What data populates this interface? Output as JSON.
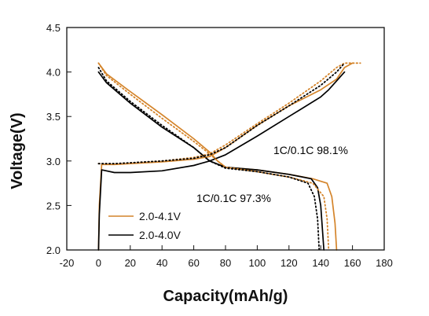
{
  "chart_data": {
    "type": "line",
    "xlabel": "Capacity(mAh/g)",
    "ylabel": "Voltage(V)",
    "xlim": [
      -20,
      180
    ],
    "ylim": [
      2.0,
      4.5
    ],
    "xticks": [
      -20,
      0,
      20,
      40,
      60,
      80,
      100,
      120,
      140,
      160,
      180
    ],
    "yticks": [
      2.0,
      2.5,
      3.0,
      3.5,
      4.0,
      4.5
    ],
    "ytick_labels": [
      "2.0",
      "2.5",
      "3.0",
      "3.5",
      "4.0",
      "4.5"
    ],
    "legend_position": "lower-left",
    "annotations": [
      {
        "text": "1C/0.1C 98.1%",
        "color": "#d4842a"
      },
      {
        "text": "1C/0.1C 97.3%",
        "color": "#000000"
      }
    ],
    "series": [
      {
        "name": "2.0-4.1V",
        "color": "#d4842a",
        "style": "solid",
        "role": "discharge",
        "x": [
          0,
          5,
          20,
          40,
          60,
          70,
          75,
          80,
          100,
          120,
          135,
          144,
          147,
          149,
          150
        ],
        "y": [
          4.1,
          3.98,
          3.78,
          3.52,
          3.25,
          3.1,
          3.0,
          2.93,
          2.9,
          2.85,
          2.8,
          2.75,
          2.6,
          2.3,
          2.0
        ]
      },
      {
        "name": "2.0-4.0V",
        "color": "#000000",
        "style": "solid",
        "role": "discharge",
        "x": [
          0,
          5,
          20,
          40,
          60,
          70,
          80,
          100,
          120,
          134,
          138,
          140,
          141,
          142
        ],
        "y": [
          4.0,
          3.88,
          3.65,
          3.38,
          3.15,
          3.0,
          2.93,
          2.9,
          2.85,
          2.8,
          2.7,
          2.5,
          2.25,
          2.0
        ]
      },
      {
        "name": "",
        "color": "#d4842a",
        "style": "solid",
        "role": "charge",
        "x": [
          0,
          0.5,
          2,
          10,
          20,
          40,
          60,
          70,
          80,
          100,
          120,
          140,
          150,
          155,
          160
        ],
        "y": [
          2.0,
          2.5,
          2.96,
          2.96,
          2.97,
          2.99,
          3.02,
          3.05,
          3.15,
          3.4,
          3.62,
          3.8,
          3.92,
          4.05,
          4.1
        ]
      },
      {
        "name": "",
        "color": "#000000",
        "style": "solid",
        "role": "charge",
        "x": [
          0,
          0.5,
          2,
          10,
          20,
          40,
          60,
          70,
          80,
          100,
          120,
          140,
          145,
          150,
          155
        ],
        "y": [
          2.0,
          2.4,
          2.9,
          2.87,
          2.87,
          2.89,
          2.95,
          3.0,
          3.07,
          3.28,
          3.5,
          3.72,
          3.8,
          3.9,
          4.0
        ]
      },
      {
        "name": "",
        "color": "#d4842a",
        "style": "dotted",
        "role": "discharge",
        "x": [
          0,
          5,
          20,
          40,
          60,
          70,
          75,
          80,
          100,
          120,
          135,
          142,
          144,
          145
        ],
        "y": [
          4.1,
          3.96,
          3.75,
          3.48,
          3.22,
          3.08,
          3.0,
          2.93,
          2.88,
          2.82,
          2.75,
          2.6,
          2.35,
          2.0
        ]
      },
      {
        "name": "",
        "color": "#000000",
        "style": "dotted",
        "role": "discharge",
        "x": [
          0,
          5,
          20,
          40,
          60,
          70,
          80,
          100,
          120,
          132,
          136,
          138,
          139
        ],
        "y": [
          4.05,
          3.9,
          3.67,
          3.4,
          3.15,
          3.0,
          2.92,
          2.88,
          2.82,
          2.75,
          2.6,
          2.35,
          2.0
        ]
      },
      {
        "name": "",
        "color": "#d4842a",
        "style": "dotted",
        "role": "charge",
        "x": [
          0,
          10,
          20,
          40,
          60,
          70,
          80,
          100,
          120,
          140,
          150,
          155,
          165
        ],
        "y": [
          2.97,
          2.97,
          2.98,
          3.0,
          3.04,
          3.08,
          3.18,
          3.42,
          3.65,
          3.9,
          4.05,
          4.1,
          4.1
        ]
      },
      {
        "name": "",
        "color": "#000000",
        "style": "dotted",
        "role": "charge",
        "x": [
          0,
          10,
          20,
          40,
          60,
          70,
          80,
          100,
          120,
          140,
          150,
          155
        ],
        "y": [
          2.97,
          2.97,
          2.98,
          3.0,
          3.03,
          3.07,
          3.15,
          3.4,
          3.62,
          3.85,
          4.0,
          4.1
        ]
      }
    ]
  }
}
